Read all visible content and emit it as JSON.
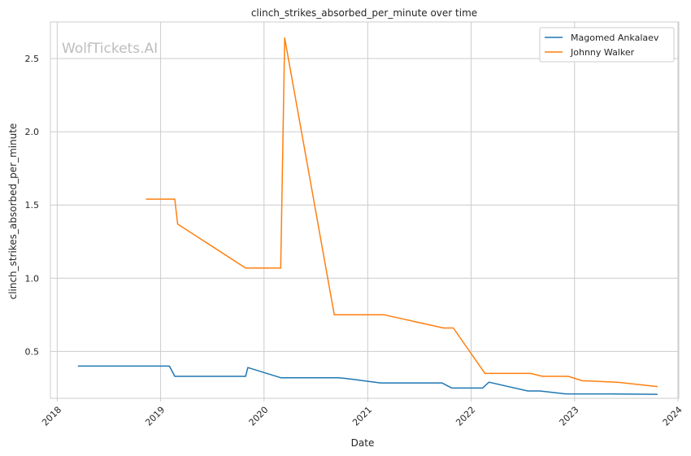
{
  "chart_data": {
    "type": "line",
    "title": "clinch_strikes_absorbed_per_minute over time",
    "xlabel": "Date",
    "ylabel": "clinch_strikes_absorbed_per_minute",
    "watermark": "WolfTickets.AI",
    "x_ticks": [
      "2018",
      "2019",
      "2020",
      "2021",
      "2022",
      "2023",
      "2024"
    ],
    "y_ticks": [
      "0.5",
      "1.0",
      "1.5",
      "2.0",
      "2.5"
    ],
    "xlim": [
      "2017-12-08",
      "2024-01-04"
    ],
    "ylim": [
      0.18,
      2.75
    ],
    "grid": true,
    "legend_position": "top-right",
    "series": [
      {
        "name": "Magomed Ankalaev",
        "color": "#1f77b4",
        "points": [
          [
            "2018-03-15",
            0.4
          ],
          [
            "2019-02-01",
            0.4
          ],
          [
            "2019-02-20",
            0.33
          ],
          [
            "2019-10-28",
            0.33
          ],
          [
            "2019-11-05",
            0.39
          ],
          [
            "2020-03-01",
            0.32
          ],
          [
            "2020-09-20",
            0.32
          ],
          [
            "2020-10-20",
            0.315
          ],
          [
            "2021-02-15",
            0.285
          ],
          [
            "2021-09-20",
            0.285
          ],
          [
            "2021-10-25",
            0.25
          ],
          [
            "2022-02-10",
            0.25
          ],
          [
            "2022-03-05",
            0.29
          ],
          [
            "2022-07-20",
            0.23
          ],
          [
            "2022-09-01",
            0.23
          ],
          [
            "2022-12-01",
            0.21
          ],
          [
            "2023-05-01",
            0.21
          ],
          [
            "2023-10-21",
            0.207
          ]
        ]
      },
      {
        "name": "Johnny Walker",
        "color": "#ff7f0e",
        "points": [
          [
            "2018-11-10",
            1.54
          ],
          [
            "2019-02-20",
            1.54
          ],
          [
            "2019-03-02",
            1.37
          ],
          [
            "2019-10-28",
            1.07
          ],
          [
            "2020-02-29",
            1.07
          ],
          [
            "2020-03-14",
            2.64
          ],
          [
            "2020-09-05",
            0.75
          ],
          [
            "2021-02-28",
            0.75
          ],
          [
            "2021-09-25",
            0.66
          ],
          [
            "2021-10-30",
            0.66
          ],
          [
            "2022-02-19",
            0.35
          ],
          [
            "2022-07-30",
            0.35
          ],
          [
            "2022-09-10",
            0.33
          ],
          [
            "2022-12-10",
            0.33
          ],
          [
            "2023-01-28",
            0.3
          ],
          [
            "2023-06-01",
            0.29
          ],
          [
            "2023-10-21",
            0.26
          ]
        ]
      }
    ]
  }
}
